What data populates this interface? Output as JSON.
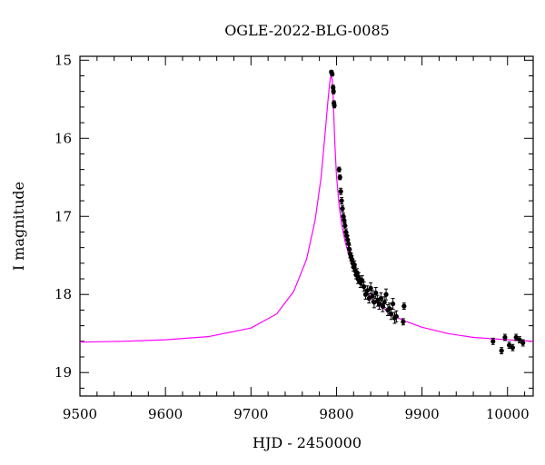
{
  "chart_data": {
    "type": "scatter",
    "title": "OGLE-2022-BLG-0085",
    "xlabel": "HJD - 2450000",
    "ylabel": "I magnitude",
    "xlim": [
      9500,
      10030
    ],
    "ylim": [
      19.3,
      14.95
    ],
    "y_inverted": true,
    "x_ticks": [
      9500,
      9600,
      9700,
      9800,
      9900,
      10000
    ],
    "x_tick_labels": [
      "9500",
      "9600",
      "9700",
      "9800",
      "9900",
      "10000"
    ],
    "y_ticks": [
      15,
      16,
      17,
      18,
      19
    ],
    "y_tick_labels": [
      "15",
      "16",
      "17",
      "18",
      "19"
    ],
    "grid": false,
    "colors": {
      "model": "#ff00ff",
      "data": "#000000"
    },
    "model": {
      "name": "",
      "type": "line",
      "x": [
        9500,
        9550,
        9600,
        9650,
        9700,
        9730,
        9750,
        9765,
        9775,
        9782,
        9787,
        9790,
        9792,
        9793,
        9794,
        9795,
        9796,
        9797,
        9798,
        9800,
        9803,
        9806,
        9810,
        9815,
        9820,
        9825,
        9830,
        9840,
        9850,
        9860,
        9870,
        9880,
        9900,
        9930,
        9960,
        10000,
        10030
      ],
      "y": [
        18.61,
        18.6,
        18.58,
        18.54,
        18.43,
        18.25,
        17.96,
        17.55,
        17.05,
        16.5,
        15.9,
        15.52,
        15.3,
        15.22,
        15.2,
        15.25,
        15.45,
        15.75,
        16.05,
        16.48,
        16.85,
        17.1,
        17.32,
        17.52,
        17.68,
        17.8,
        17.9,
        18.04,
        18.14,
        18.22,
        18.29,
        18.34,
        18.42,
        18.5,
        18.55,
        18.58,
        18.6
      ]
    },
    "observations": {
      "name": "",
      "x": [
        9794,
        9795,
        9796,
        9796.5,
        9797,
        9797.5,
        9803,
        9804,
        9805,
        9806,
        9807,
        9808,
        9809,
        9810,
        9811,
        9812,
        9813,
        9814,
        9815,
        9816,
        9817,
        9818,
        9819,
        9820,
        9821,
        9822,
        9823,
        9824,
        9825,
        9826,
        9828,
        9830,
        9832,
        9834,
        9836,
        9838,
        9840,
        9842,
        9844,
        9846,
        9848,
        9850,
        9852,
        9854,
        9856,
        9858,
        9860,
        9862,
        9864,
        9866,
        9868,
        9870,
        9878,
        9879,
        9983,
        9993,
        9997,
        10002,
        10006,
        10010,
        10014,
        10018
      ],
      "y": [
        15.15,
        15.18,
        15.35,
        15.4,
        15.55,
        15.58,
        16.4,
        16.5,
        16.68,
        16.8,
        16.9,
        17.0,
        17.05,
        17.12,
        17.2,
        17.25,
        17.3,
        17.35,
        17.42,
        17.48,
        17.52,
        17.55,
        17.6,
        17.65,
        17.62,
        17.7,
        17.75,
        17.72,
        17.8,
        17.78,
        17.85,
        17.82,
        17.9,
        18.0,
        17.95,
        18.05,
        17.92,
        18.02,
        18.1,
        17.98,
        18.08,
        18.12,
        18.05,
        18.15,
        18.1,
        18.0,
        18.2,
        18.18,
        18.25,
        18.12,
        18.3,
        18.28,
        18.35,
        18.15,
        18.6,
        18.72,
        18.55,
        18.65,
        18.68,
        18.55,
        18.58,
        18.62
      ],
      "err": [
        0.02,
        0.02,
        0.03,
        0.03,
        0.03,
        0.03,
        0.03,
        0.03,
        0.04,
        0.04,
        0.04,
        0.04,
        0.04,
        0.04,
        0.04,
        0.04,
        0.05,
        0.05,
        0.05,
        0.05,
        0.05,
        0.05,
        0.05,
        0.05,
        0.05,
        0.05,
        0.05,
        0.05,
        0.06,
        0.06,
        0.06,
        0.06,
        0.06,
        0.06,
        0.06,
        0.06,
        0.07,
        0.07,
        0.07,
        0.07,
        0.07,
        0.07,
        0.07,
        0.07,
        0.07,
        0.07,
        0.07,
        0.07,
        0.07,
        0.07,
        0.07,
        0.07,
        0.04,
        0.04,
        0.04,
        0.04,
        0.04,
        0.04,
        0.04,
        0.04,
        0.04,
        0.04
      ]
    }
  }
}
